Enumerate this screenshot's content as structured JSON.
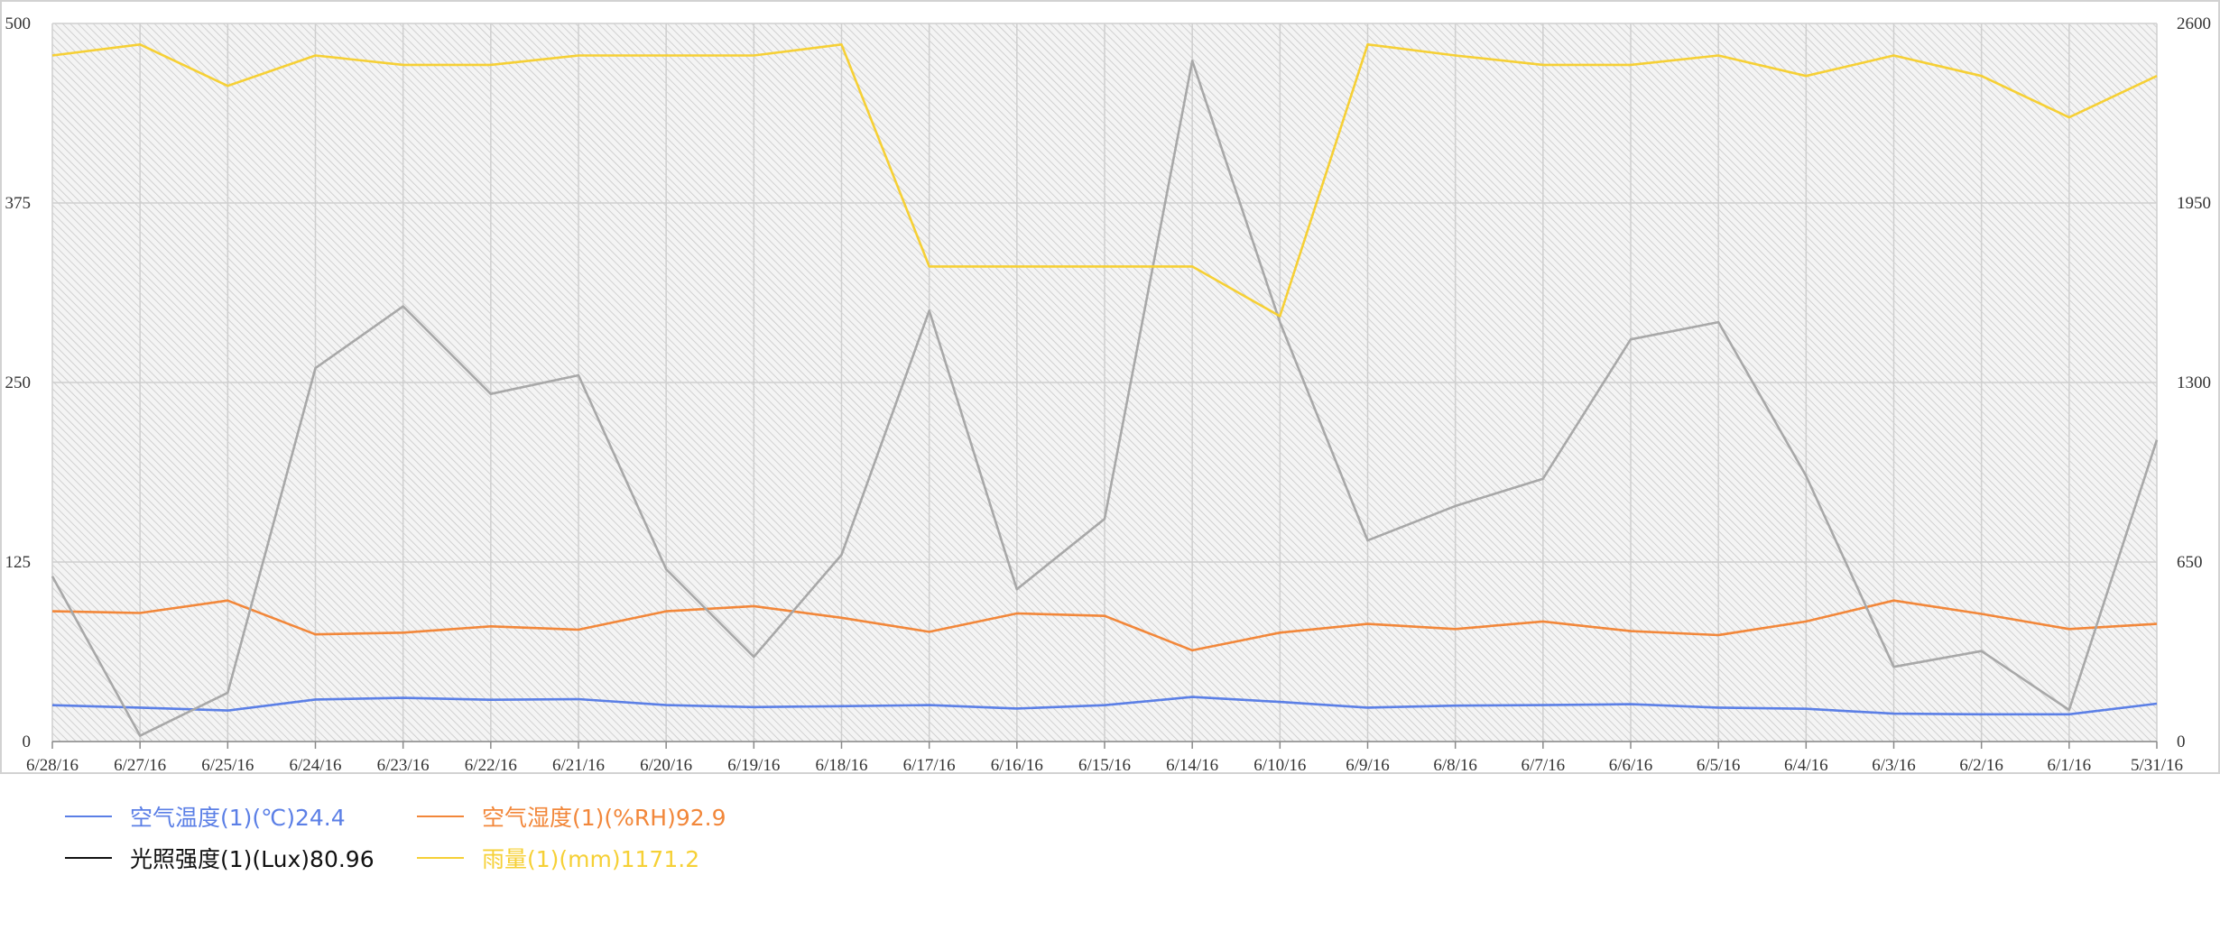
{
  "chart_data": {
    "type": "line",
    "x": [
      "6/28/16",
      "6/27/16",
      "6/25/16",
      "6/24/16",
      "6/23/16",
      "6/22/16",
      "6/21/16",
      "6/20/16",
      "6/19/16",
      "6/18/16",
      "6/17/16",
      "6/16/16",
      "6/15/16",
      "6/14/16",
      "6/10/16",
      "6/9/16",
      "6/8/16",
      "6/7/16",
      "6/6/16",
      "6/5/16",
      "6/4/16",
      "6/3/16",
      "6/2/16",
      "6/1/16",
      "5/31/16"
    ],
    "y_left": {
      "range": [
        0,
        500
      ],
      "ticks": [
        "0",
        "125",
        "250",
        "375",
        "500"
      ]
    },
    "y_right": {
      "range": [
        0,
        2600
      ],
      "ticks": [
        "0",
        "650",
        "1300",
        "1950",
        "2600"
      ]
    },
    "grid": true,
    "legend_position": "bottom-left",
    "series": [
      {
        "name": "空气温度(1)(℃)24.4",
        "color": "#5b7fe6",
        "axis": "left",
        "values": [
          25.3,
          23.6,
          21.6,
          29.3,
          30.4,
          29.1,
          29.5,
          25.4,
          24.0,
          24.6,
          25.4,
          23.0,
          25.3,
          31.0,
          27.6,
          23.6,
          25.0,
          25.4,
          26.0,
          23.6,
          22.8,
          19.4,
          19.0,
          19.0,
          26.4
        ]
      },
      {
        "name": "空气湿度(1)(%RH)92.9",
        "color": "#f2873a",
        "axis": "left",
        "values": [
          90.7,
          89.5,
          98.2,
          74.6,
          75.8,
          80.2,
          77.9,
          90.7,
          94.3,
          86.2,
          76.4,
          89.2,
          87.5,
          63.5,
          75.8,
          81.9,
          78.3,
          83.6,
          76.9,
          74.1,
          83.6,
          98.2,
          88.9,
          78.3,
          81.9
        ]
      },
      {
        "name": "光照强度(1)(Lux)80.96",
        "color": "#a8a8a8",
        "axis": "left",
        "values": [
          115,
          4,
          34,
          260,
          303,
          242,
          255,
          120,
          59,
          130,
          300,
          106,
          155,
          474,
          292,
          140,
          164,
          183,
          280,
          292,
          185,
          52,
          63,
          22,
          210
        ]
      },
      {
        "name": "雨量(1)(mm)1171.2",
        "color": "#f6d035",
        "axis": "right",
        "values": [
          2484,
          2524,
          2374,
          2484,
          2450,
          2450,
          2484,
          2484,
          2484,
          2524,
          1720,
          1720,
          1720,
          1720,
          1540,
          2524,
          2484,
          2450,
          2450,
          2484,
          2410,
          2484,
          2410,
          2260,
          2410
        ]
      }
    ]
  }
}
